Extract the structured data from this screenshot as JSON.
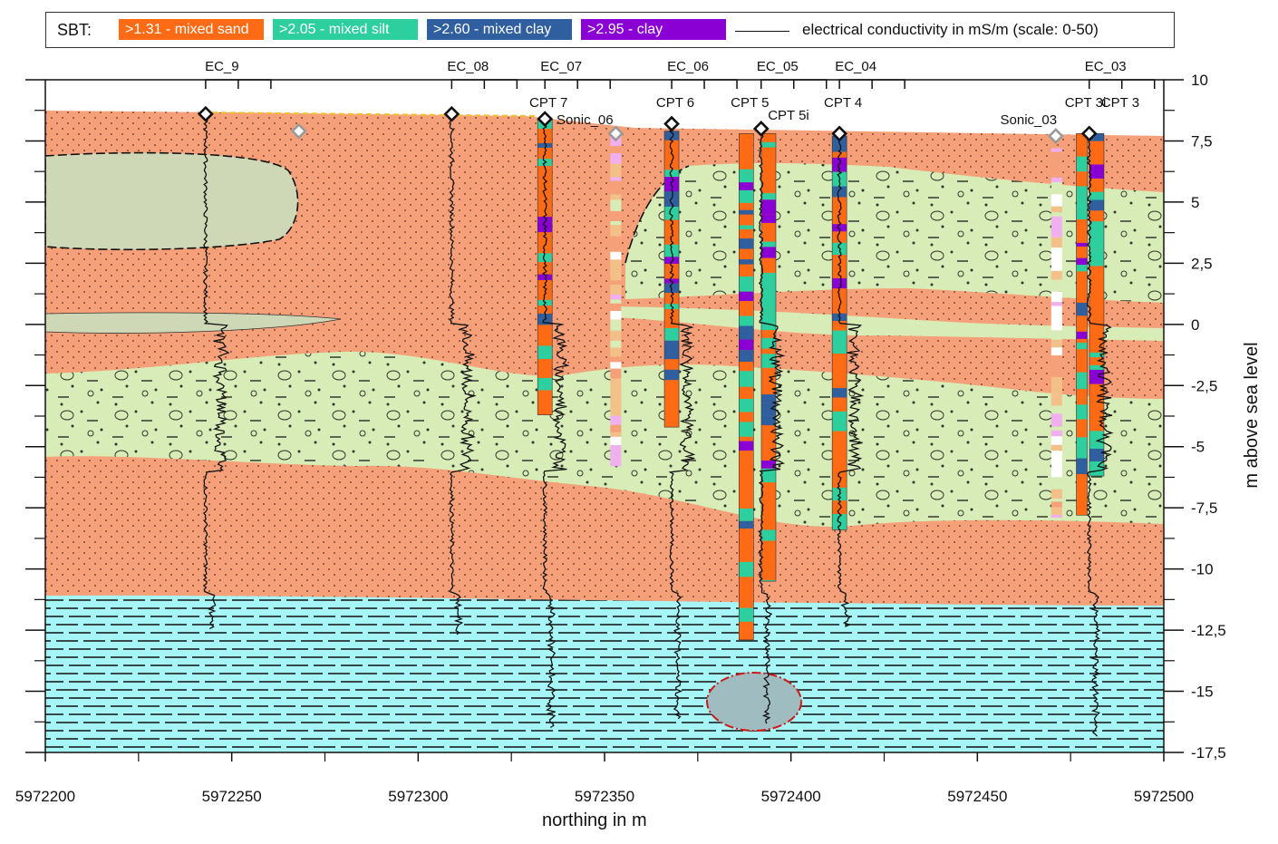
{
  "legend": {
    "title": "SBT:",
    "items": [
      {
        "label": ">1.31 - mixed sand",
        "color": "#ff6a14"
      },
      {
        "label": ">2.05 - mixed silt",
        "color": "#2ecf9f"
      },
      {
        "label": ">2.60 - mixed clay",
        "color": "#2f5f9f"
      },
      {
        "label": ">2.95 - clay",
        "color": "#8a00d4"
      }
    ],
    "line_label": "electrical conductivity in mS/m (scale: 0-50)"
  },
  "axes": {
    "xlabel": "northing in m",
    "ylabel": "m above sea level",
    "xticks": [
      "5972200",
      "5972250",
      "5972300",
      "5972350",
      "5972400",
      "5972450",
      "5972500"
    ],
    "yticks": [
      "10",
      "7,5",
      "5",
      "2,5",
      "0",
      "-2,5",
      "-5",
      "-7,5",
      "-10",
      "-12,5",
      "-15",
      "-17,5"
    ]
  },
  "colors": {
    "sand": "#f6a07a",
    "till": "#d7ecb6",
    "basement": "#a6f6f8",
    "lens": "#cfd8b6",
    "anomaly": "#9fbcc0",
    "anomaly_outline": "#d01818"
  },
  "boreholes": {
    "ec": [
      {
        "label": "EC_9",
        "x": 5972243
      },
      {
        "label": "EC_08",
        "x": 5972309
      },
      {
        "label": "EC_07",
        "x": 5972334
      },
      {
        "label": "EC_06",
        "x": 5972368
      },
      {
        "label": "EC_05",
        "x": 5972392
      },
      {
        "label": "EC_04",
        "x": 5972413
      },
      {
        "label": "EC_03",
        "x": 5972480
      }
    ],
    "cpt": [
      {
        "label": "CPT 7",
        "x": 5972334
      },
      {
        "label": "CPT 6",
        "x": 5972368
      },
      {
        "label": "CPT 5",
        "x": 5972388
      },
      {
        "label": "CPT 5i",
        "x": 5972394
      },
      {
        "label": "CPT 4",
        "x": 5972413
      },
      {
        "label": "CPT 3i",
        "x": 5972478
      },
      {
        "label": "CPT 3",
        "x": 5972482
      }
    ],
    "sonic": [
      {
        "label": "Sonic_06",
        "x": 5972353
      },
      {
        "label": "Sonic_03",
        "x": 5972472
      }
    ]
  }
}
